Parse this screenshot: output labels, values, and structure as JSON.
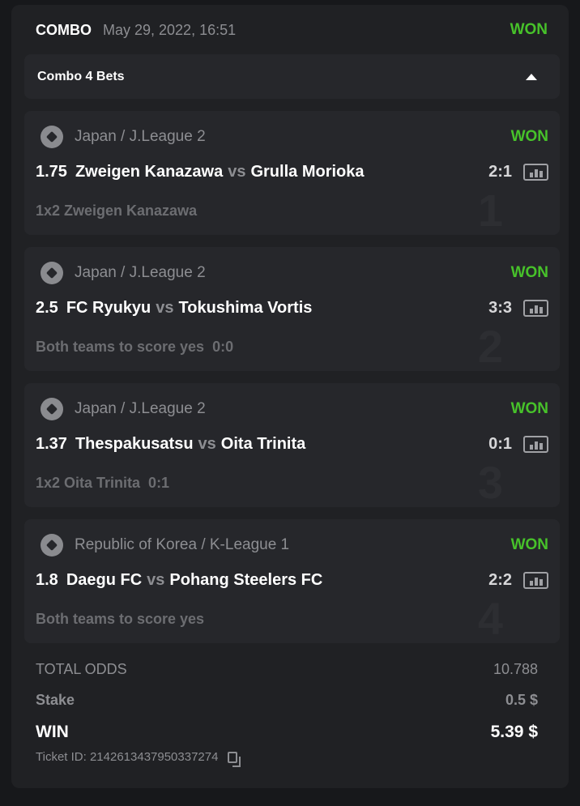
{
  "header": {
    "type": "COMBO",
    "date": "May 29, 2022, 16:51",
    "status": "WON"
  },
  "colors": {
    "won": "#47c22a",
    "background": "#17181b",
    "card": "#202124"
  },
  "combo_toggle": {
    "label": "Combo 4 Bets",
    "icon": "caret-up-icon"
  },
  "bets": [
    {
      "index": "1",
      "league": "Japan / J.League 2",
      "status": "WON",
      "odds": "1.75",
      "home": "Zweigen Kanazawa",
      "vs": "vs",
      "away": "Grulla Morioka",
      "score": "2:1",
      "market": "1x2 Zweigen Kanazawa"
    },
    {
      "index": "2",
      "league": "Japan / J.League 2",
      "status": "WON",
      "odds": "2.5",
      "home": "FC Ryukyu",
      "vs": "vs",
      "away": "Tokushima Vortis",
      "score": "3:3",
      "market": "Both teams to score yes  0:0"
    },
    {
      "index": "3",
      "league": "Japan / J.League 2",
      "status": "WON",
      "odds": "1.37",
      "home": "Thespakusatsu",
      "vs": "vs",
      "away": "Oita Trinita",
      "score": "0:1",
      "market": "1x2 Oita Trinita  0:1"
    },
    {
      "index": "4",
      "league": "Republic of Korea / K-League 1",
      "status": "WON",
      "odds": "1.8",
      "home": "Daegu FC",
      "vs": "vs",
      "away": "Pohang Steelers FC",
      "score": "2:2",
      "market": "Both teams to score yes"
    }
  ],
  "summary": {
    "total_odds_label": "TOTAL ODDS",
    "total_odds": "10.788",
    "stake_label": "Stake",
    "stake": "0.5 $",
    "win_label": "WIN",
    "win": "5.39 $",
    "ticket": "Ticket ID: 2142613437950337274"
  }
}
